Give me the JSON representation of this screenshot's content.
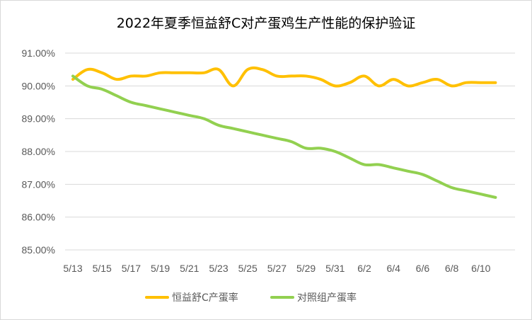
{
  "chart_data": {
    "type": "line",
    "title": "2022年夏季恒益舒C对产蛋鸡生产性能的保护验证",
    "xlabel": "",
    "ylabel": "",
    "ylim": [
      0.85,
      0.91
    ],
    "y_ticks": [
      "85.00%",
      "86.00%",
      "87.00%",
      "88.00%",
      "89.00%",
      "90.00%",
      "91.00%"
    ],
    "x_tick_labels": [
      "5/13",
      "5/15",
      "5/17",
      "5/19",
      "5/21",
      "5/23",
      "5/25",
      "5/27",
      "5/29",
      "5/31",
      "6/2",
      "6/4",
      "6/6",
      "6/8",
      "6/10"
    ],
    "legend_position": "bottom",
    "grid": true,
    "x": [
      "5/13",
      "5/14",
      "5/15",
      "5/16",
      "5/17",
      "5/18",
      "5/19",
      "5/20",
      "5/21",
      "5/22",
      "5/23",
      "5/24",
      "5/25",
      "5/26",
      "5/27",
      "5/28",
      "5/29",
      "5/30",
      "5/31",
      "6/1",
      "6/2",
      "6/3",
      "6/4",
      "6/5",
      "6/6",
      "6/7",
      "6/8",
      "6/9",
      "6/10",
      "6/11"
    ],
    "series": [
      {
        "name": "恒益舒C产蛋率",
        "color": "#FFC000",
        "values": [
          0.902,
          0.905,
          0.904,
          0.902,
          0.903,
          0.903,
          0.904,
          0.904,
          0.904,
          0.904,
          0.905,
          0.9,
          0.905,
          0.905,
          0.903,
          0.903,
          0.903,
          0.902,
          0.9,
          0.901,
          0.903,
          0.9,
          0.902,
          0.9,
          0.901,
          0.902,
          0.9,
          0.901,
          0.901,
          0.901
        ]
      },
      {
        "name": "对照组产蛋率",
        "color": "#92D050",
        "values": [
          0.903,
          0.9,
          0.899,
          0.897,
          0.895,
          0.894,
          0.893,
          0.892,
          0.891,
          0.89,
          0.888,
          0.887,
          0.886,
          0.885,
          0.884,
          0.883,
          0.881,
          0.881,
          0.88,
          0.878,
          0.876,
          0.876,
          0.875,
          0.874,
          0.873,
          0.871,
          0.869,
          0.868,
          0.867,
          0.866
        ]
      }
    ]
  }
}
